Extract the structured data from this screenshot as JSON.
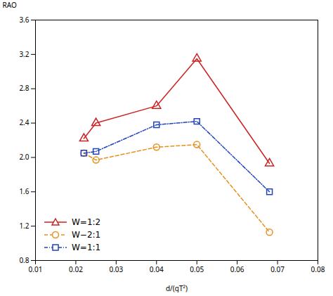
{
  "chart_data": {
    "type": "line",
    "xlabel": "d/(gT²)",
    "ylabel": "RAO",
    "x": [
      0.022,
      0.025,
      0.04,
      0.05,
      0.068
    ],
    "series": [
      {
        "name": "W=1:2",
        "color": "#cc2222",
        "values": [
          2.22,
          2.4,
          2.6,
          3.15,
          1.93
        ],
        "marker": "triangle",
        "line_style": "solid"
      },
      {
        "name": "W−2:1",
        "color": "#e89020",
        "values": [
          2.05,
          1.97,
          2.12,
          2.15,
          1.13
        ],
        "marker": "circle",
        "line_style": "dashed"
      },
      {
        "name": "W=1:1",
        "color": "#2244bb",
        "values": [
          2.05,
          2.07,
          2.38,
          2.42,
          1.6
        ],
        "marker": "square",
        "line_style": "dashdot"
      }
    ],
    "xlim": [
      0.01,
      0.08
    ],
    "ylim": [
      0.8,
      3.6
    ],
    "xticks": [
      0.01,
      0.02,
      0.03,
      0.04,
      0.05,
      0.06,
      0.07,
      0.08
    ],
    "yticks": [
      0.8,
      1.2,
      1.6,
      {
        "value": 2,
        "label": "2.0"
      },
      2.4,
      2.8,
      3.2,
      3.6
    ],
    "legend": "lower left",
    "grid": false
  }
}
